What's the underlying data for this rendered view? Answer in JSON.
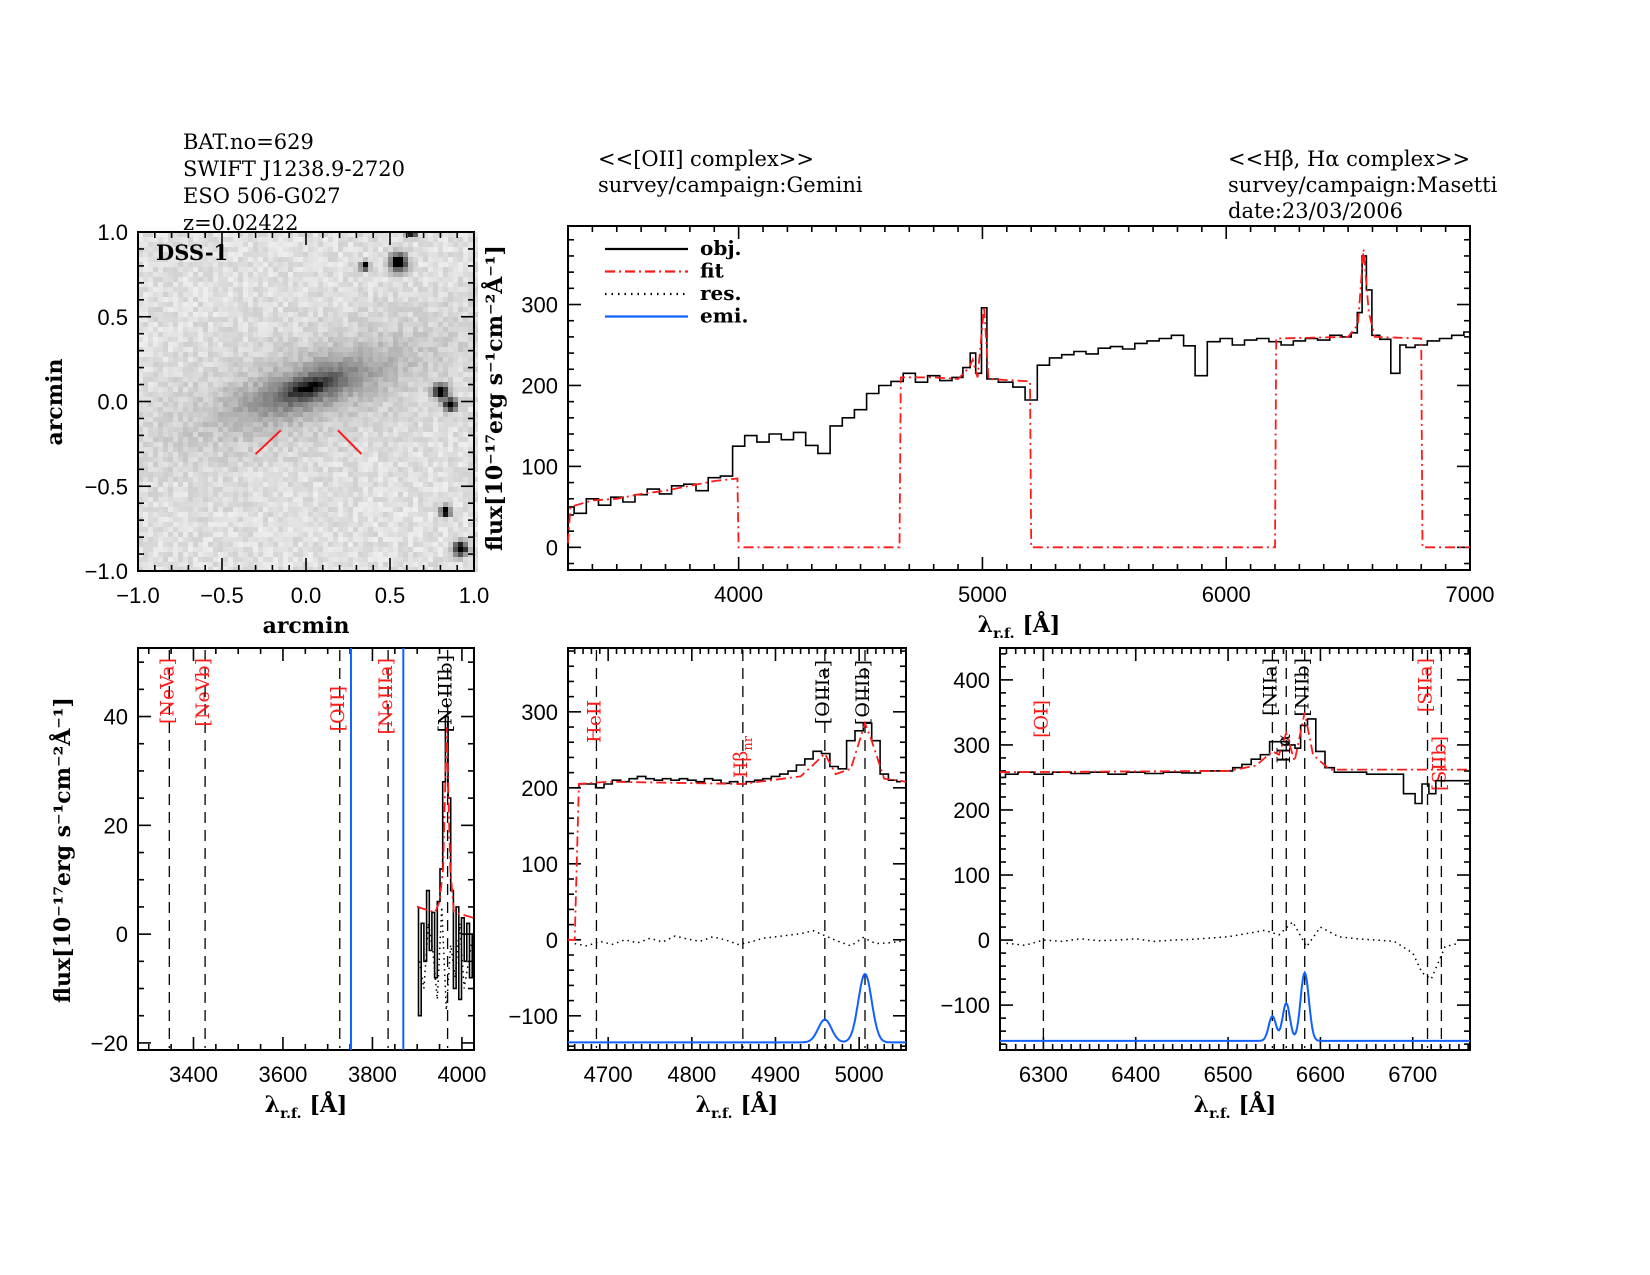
{
  "header": {
    "object": [
      "BAT.no=629",
      "SWIFT J1238.9-2720",
      "ESO 506-G027",
      "z=0.02422"
    ],
    "left_block": [
      "<<[OII] complex>>",
      "survey/campaign:Gemini"
    ],
    "right_block": [
      "<<Hβ, Hα complex>>",
      "survey/campaign:Masetti",
      "date:23/03/2006"
    ]
  },
  "colors": {
    "obj": "#000000",
    "fit": "#ff1a1a",
    "res": "#000000",
    "emi": "#1060ff",
    "line_red": "#ff1a1a",
    "line_black": "#000000"
  },
  "chart_data": [
    {
      "type": "image",
      "label": "DSS-1",
      "xlabel": "arcmin",
      "ylabel": "arcmin",
      "xlim": [
        -1,
        1
      ],
      "ylim": [
        -1,
        1
      ],
      "xticks": [
        -1.0,
        -0.5,
        0.0,
        0.5,
        1.0
      ],
      "yticks": [
        -1.0,
        -0.5,
        0.0,
        0.5,
        1.0
      ],
      "colormap": "inverted-grayscale",
      "galaxy": {
        "center": [
          0.02,
          0.08
        ],
        "position_angle_deg": -18,
        "major_arcmin": 0.55,
        "minor_arcmin": 0.17
      },
      "stars": [
        [
          0.55,
          0.82,
          0.05
        ],
        [
          0.35,
          0.8,
          0.025
        ],
        [
          0.8,
          0.06,
          0.04
        ],
        [
          0.86,
          -0.02,
          0.035
        ],
        [
          0.83,
          -0.65,
          0.03
        ],
        [
          0.92,
          -0.87,
          0.04
        ],
        [
          0.63,
          1.0,
          0.03
        ]
      ],
      "markers": [
        [
          [
            -0.3,
            -0.31
          ],
          [
            -0.15,
            -0.17
          ]
        ],
        [
          [
            0.19,
            -0.17
          ],
          [
            0.33,
            -0.31
          ]
        ]
      ]
    },
    {
      "type": "line",
      "xlabel": "λ",
      "xlabel_sub": "r.f.",
      "xlabel_unit": "[Å]",
      "ylabel": "flux[10⁻¹⁷erg s⁻¹cm⁻²Å⁻¹]",
      "xlim": [
        3300,
        7000
      ],
      "ylim": [
        -28,
        397
      ],
      "xticks": [
        4000,
        5000,
        6000,
        7000
      ],
      "xminor": 100,
      "yticks": [
        0,
        100,
        200,
        300
      ],
      "yminor": 20,
      "legend": {
        "placement": "top-left",
        "entries": [
          "obj.",
          "fit",
          "res.",
          "emi."
        ]
      },
      "obj": {
        "x": [
          3300,
          3350,
          3400,
          3450,
          3500,
          3550,
          3600,
          3650,
          3700,
          3750,
          3800,
          3850,
          3900,
          3950,
          4000,
          4050,
          4100,
          4150,
          4200,
          4250,
          4300,
          4350,
          4400,
          4450,
          4500,
          4550,
          4600,
          4650,
          4700,
          4750,
          4800,
          4850,
          4900,
          4940,
          4960,
          4985,
          5007,
          5030,
          5100,
          5150,
          5200,
          5250,
          5300,
          5350,
          5400,
          5450,
          5500,
          5550,
          5600,
          5650,
          5700,
          5750,
          5800,
          5850,
          5895,
          5950,
          6000,
          6050,
          6100,
          6150,
          6200,
          6250,
          6300,
          6350,
          6400,
          6450,
          6500,
          6525,
          6550,
          6565,
          6585,
          6610,
          6650,
          6700,
          6725,
          6750,
          6800,
          6850,
          6900,
          6950,
          7000
        ],
        "y": [
          50,
          42,
          60,
          52,
          62,
          56,
          65,
          72,
          66,
          76,
          78,
          70,
          86,
          88,
          125,
          138,
          130,
          140,
          133,
          142,
          126,
          116,
          150,
          160,
          170,
          190,
          200,
          205,
          215,
          204,
          212,
          206,
          210,
          222,
          240,
          215,
          296,
          208,
          204,
          198,
          182,
          225,
          234,
          238,
          242,
          239,
          246,
          248,
          245,
          252,
          255,
          258,
          262,
          249,
          212,
          254,
          258,
          250,
          256,
          258,
          254,
          250,
          255,
          258,
          256,
          262,
          260,
          265,
          290,
          360,
          318,
          262,
          257,
          215,
          250,
          247,
          250,
          255,
          258,
          262,
          266
        ]
      },
      "fit": {
        "x": [
          3300,
          3310,
          3400,
          3500,
          3600,
          3700,
          3800,
          3900,
          3995,
          4000,
          4660,
          4665,
          4800,
          4900,
          4945,
          4960,
          4980,
          5007,
          5025,
          5195,
          5200,
          6200,
          6205,
          6500,
          6540,
          6563,
          6585,
          6610,
          6800,
          6805,
          7000
        ],
        "y": [
          5,
          50,
          58,
          60,
          66,
          70,
          76,
          82,
          85,
          0,
          0,
          210,
          210,
          208,
          222,
          232,
          210,
          298,
          208,
          205,
          0,
          0,
          258,
          260,
          275,
          368,
          290,
          260,
          258,
          0,
          0
        ]
      }
    },
    {
      "type": "line",
      "xlabel": "λ",
      "xlabel_sub": "r.f.",
      "xlabel_unit": "[Å]",
      "ylabel": "flux[10⁻¹⁷erg s⁻¹cm⁻²Å⁻¹]",
      "xlim": [
        3276,
        4027
      ],
      "ylim": [
        -21.3,
        52.6
      ],
      "xticks": [
        3400,
        3600,
        3800,
        4000
      ],
      "xminor": 50,
      "yticks": [
        -20,
        0,
        20,
        40
      ],
      "yminor": 5,
      "lines": [
        {
          "label": "[NeVa]",
          "wavelength": 3346,
          "color": "red"
        },
        {
          "label": "[NeVb]",
          "wavelength": 3426,
          "color": "red"
        },
        {
          "label": "[OII]",
          "wavelength": 3727,
          "color": "red"
        },
        {
          "label": "[NeIIIa]",
          "wavelength": 3835,
          "color": "red"
        },
        {
          "label": "[NeIIIb]",
          "wavelength": 3968,
          "color": "black"
        }
      ],
      "emi_vlines": [
        3752,
        3869
      ],
      "obj": {
        "x": [
          3900,
          3906,
          3912,
          3918,
          3924,
          3930,
          3936,
          3942,
          3948,
          3954,
          3960,
          3966,
          3972,
          3978,
          3984,
          3990,
          3996,
          4002,
          4008,
          4014,
          4020,
          4026
        ],
        "y": [
          5,
          -15,
          2,
          -5,
          8,
          -3,
          4,
          -8,
          6,
          12,
          28,
          40,
          25,
          8,
          -10,
          5,
          -12,
          3,
          -5,
          2,
          -8,
          0
        ]
      },
      "fit": {
        "x": [
          3900,
          3940,
          3950,
          3958,
          3966,
          3974,
          3982,
          4026
        ],
        "y": [
          5,
          4,
          6,
          12,
          38,
          12,
          4,
          3
        ]
      },
      "res": {
        "x": [
          3905,
          3915,
          3925,
          3935,
          3945,
          3955,
          3965,
          3975,
          3985,
          3995,
          4005,
          4015,
          4025
        ],
        "y": [
          -5,
          -10,
          2,
          -3,
          -12,
          5,
          -14,
          -2,
          -8,
          2,
          -10,
          -5,
          0
        ]
      }
    },
    {
      "type": "line",
      "xlabel": "λ",
      "xlabel_sub": "r.f.",
      "xlabel_unit": "[Å]",
      "xlim": [
        4652,
        5056
      ],
      "ylim": [
        -145,
        384
      ],
      "xticks": [
        4700,
        4800,
        4900,
        5000
      ],
      "xminor": 10,
      "yticks": [
        -100,
        0,
        100,
        200,
        300
      ],
      "yminor": 20,
      "lines": [
        {
          "label": "HeII",
          "wavelength": 4686,
          "color": "red"
        },
        {
          "label": "Hβ",
          "sub": "nr",
          "wavelength": 4861,
          "color": "red"
        },
        {
          "label": "[OIIIa]",
          "wavelength": 4959,
          "color": "black"
        },
        {
          "label": "[OIIIb]",
          "wavelength": 5007,
          "color": "black"
        }
      ],
      "obj": {
        "x": [
          4660,
          4670,
          4680,
          4690,
          4700,
          4710,
          4720,
          4730,
          4740,
          4750,
          4760,
          4770,
          4780,
          4790,
          4800,
          4810,
          4820,
          4830,
          4840,
          4850,
          4860,
          4870,
          4880,
          4890,
          4900,
          4910,
          4920,
          4930,
          4940,
          4950,
          4960,
          4970,
          4980,
          4990,
          5000,
          5010,
          5020,
          5030,
          5040,
          5050
        ],
        "y": [
          200,
          205,
          205,
          200,
          205,
          210,
          208,
          212,
          215,
          212,
          210,
          212,
          210,
          212,
          210,
          208,
          212,
          210,
          206,
          208,
          205,
          208,
          210,
          212,
          215,
          218,
          222,
          230,
          238,
          248,
          245,
          228,
          225,
          262,
          275,
          285,
          262,
          218,
          210,
          208
        ]
      },
      "fit": {
        "x": [
          4652,
          4660,
          4665,
          4700,
          4860,
          4930,
          4945,
          4959,
          4972,
          4990,
          5000,
          5007,
          5015,
          5030,
          5056
        ],
        "y": [
          0,
          0,
          205,
          208,
          205,
          215,
          230,
          245,
          218,
          225,
          260,
          285,
          262,
          212,
          208
        ]
      },
      "res": {
        "x": [
          4660,
          4675,
          4690,
          4705,
          4720,
          4735,
          4750,
          4765,
          4780,
          4795,
          4810,
          4825,
          4840,
          4855,
          4870,
          4885,
          4900,
          4915,
          4930,
          4945,
          4960,
          4975,
          4990,
          5005,
          5020,
          5035,
          5050
        ],
        "y": [
          -5,
          -8,
          -2,
          -6,
          0,
          -4,
          2,
          -3,
          5,
          1,
          -2,
          4,
          0,
          -6,
          -3,
          2,
          4,
          6,
          8,
          12,
          5,
          -2,
          -8,
          3,
          -5,
          -4,
          -2
        ]
      },
      "emi": {
        "baseline": -135,
        "components": [
          {
            "center": 4959,
            "amplitude": 30,
            "sigma": 8
          },
          {
            "center": 5007,
            "amplitude": 90,
            "sigma": 8
          }
        ]
      }
    },
    {
      "type": "line",
      "xlabel": "λ",
      "xlabel_sub": "r.f.",
      "xlabel_unit": "[Å]",
      "xlim": [
        6253,
        6762
      ],
      "ylim": [
        -169,
        449
      ],
      "xticks": [
        6300,
        6400,
        6500,
        6600,
        6700
      ],
      "xminor": 10,
      "yticks": [
        -100,
        0,
        100,
        200,
        300,
        400
      ],
      "yminor": 20,
      "lines": [
        {
          "label": "[OI]",
          "wavelength": 6300,
          "color": "red"
        },
        {
          "label": "[NIIa]",
          "wavelength": 6548,
          "color": "black"
        },
        {
          "label": "Hα",
          "wavelength": 6563,
          "color": "black"
        },
        {
          "label": "[NIIb]",
          "wavelength": 6583,
          "color": "black"
        },
        {
          "label": "[SIIa]",
          "wavelength": 6716,
          "color": "red"
        },
        {
          "label": "[SIIb]",
          "wavelength": 6731,
          "color": "red"
        }
      ],
      "obj": {
        "x": [
          6253,
          6265,
          6280,
          6300,
          6320,
          6340,
          6360,
          6380,
          6400,
          6420,
          6440,
          6460,
          6480,
          6500,
          6510,
          6520,
          6530,
          6540,
          6550,
          6560,
          6570,
          6575,
          6582,
          6590,
          6600,
          6610,
          6620,
          6640,
          6660,
          6680,
          6700,
          6705,
          6715,
          6720,
          6730,
          6745,
          6762
        ],
        "y": [
          250,
          255,
          258,
          255,
          258,
          256,
          258,
          255,
          258,
          256,
          258,
          257,
          260,
          260,
          265,
          270,
          278,
          285,
          305,
          305,
          300,
          295,
          330,
          340,
          290,
          265,
          258,
          258,
          255,
          255,
          225,
          210,
          240,
          225,
          245,
          245,
          245
        ]
      },
      "fit": {
        "x": [
          6253,
          6500,
          6530,
          6548,
          6555,
          6563,
          6572,
          6583,
          6592,
          6610,
          6762
        ],
        "y": [
          258,
          260,
          268,
          290,
          285,
          318,
          275,
          350,
          285,
          262,
          262
        ]
      },
      "res": {
        "x": [
          6260,
          6280,
          6300,
          6320,
          6340,
          6360,
          6380,
          6400,
          6420,
          6440,
          6460,
          6480,
          6500,
          6520,
          6540,
          6555,
          6570,
          6585,
          6600,
          6620,
          6640,
          6660,
          6680,
          6700,
          6710,
          6720,
          6735,
          6750
        ],
        "y": [
          -5,
          -8,
          0,
          -2,
          2,
          -1,
          0,
          2,
          -2,
          0,
          1,
          3,
          5,
          10,
          15,
          8,
          28,
          -10,
          20,
          5,
          2,
          0,
          -2,
          -20,
          -50,
          -60,
          -10,
          -5
        ]
      },
      "emi": {
        "baseline": -155,
        "components": [
          {
            "center": 6548,
            "amplitude": 38,
            "sigma": 4
          },
          {
            "center": 6563,
            "amplitude": 58,
            "sigma": 4
          },
          {
            "center": 6583,
            "amplitude": 105,
            "sigma": 4.5
          }
        ]
      }
    }
  ]
}
